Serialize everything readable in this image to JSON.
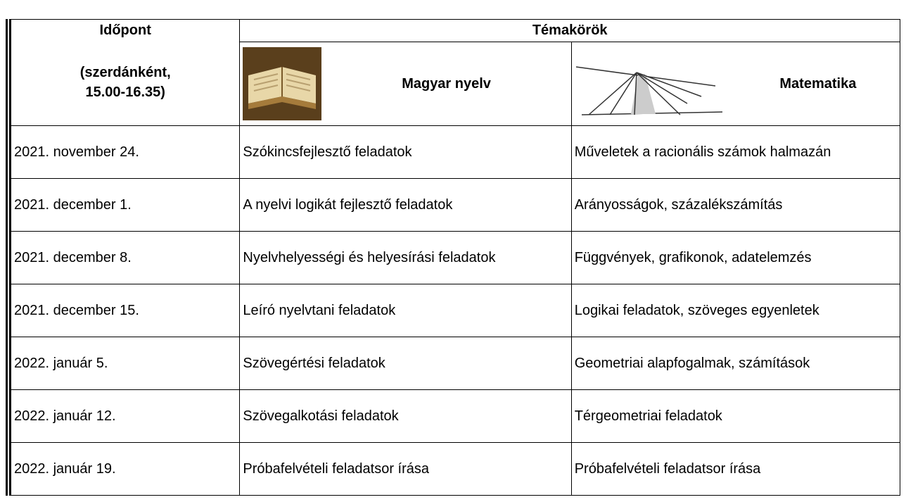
{
  "header": {
    "time_title": "Időpont",
    "time_note": "(szerdánként, 15.00-16.35)",
    "topics_title": "Témakörök",
    "subjects": [
      "Magyar nyelv",
      "Matematika"
    ]
  },
  "table": {
    "rows": [
      [
        "2021. november 24.",
        "Szókincsfejlesztő feladatok",
        "Műveletek a racionális számok halmazán"
      ],
      [
        "2021. december 1.",
        "A nyelvi logikát fejlesztő feladatok",
        "Arányosságok, százalékszámítás"
      ],
      [
        "2021. december 8.",
        "Nyelvhelyességi és helyesírási feladatok",
        "Függvények, grafikonok, adatelemzés"
      ],
      [
        "2021. december 15.",
        "Leíró nyelvtani feladatok",
        "Logikai feladatok, szöveges egyenletek"
      ],
      [
        "2022. január 5.",
        "Szövegértési feladatok",
        "Geometriai alapfogalmak, számítások"
      ],
      [
        "2022. január 12.",
        "Szövegalkotási feladatok",
        "Térgeometriai feladatok"
      ],
      [
        "2022. január 19.",
        "Próbafelvételi feladatsor írása",
        "Próbafelvételi feladatsor írása"
      ]
    ]
  }
}
